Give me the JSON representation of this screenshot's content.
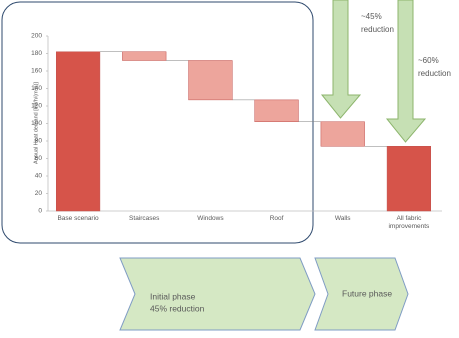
{
  "chart_data": {
    "type": "waterfall",
    "y_label": "Annual Heat demand [kWh/(m²a)]",
    "categories": [
      "Base scenario",
      "Staircases",
      "Windows",
      "Roof",
      "Walls",
      "All fabric improvements"
    ],
    "values": [
      182,
      -10,
      -45,
      -25,
      -28,
      74
    ],
    "color": "#d6544a",
    "decrease_color": "#eda59c",
    "ylim": [
      0,
      200
    ],
    "yticks": [
      0,
      20,
      40,
      60,
      80,
      100,
      120,
      140,
      160,
      180,
      200
    ],
    "annotations": [
      {
        "lines": [
          "~45%",
          "reduction"
        ]
      },
      {
        "lines": [
          "~60%",
          "reduction"
        ]
      }
    ],
    "phases": [
      {
        "lines": [
          "Initial phase",
          "45% reduction"
        ]
      },
      {
        "lines": [
          "Future phase"
        ]
      }
    ]
  }
}
